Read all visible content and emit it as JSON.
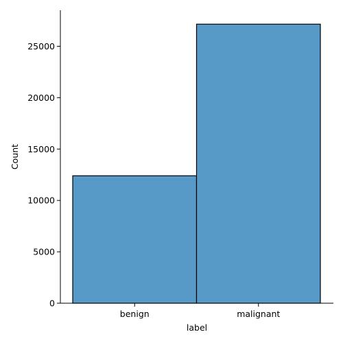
{
  "chart_data": {
    "type": "bar",
    "title": "",
    "xlabel": "label",
    "ylabel": "Count",
    "categories": [
      "benign",
      "malignant"
    ],
    "values": [
      12400,
      27150
    ],
    "ylim": [
      0,
      28500
    ],
    "yticks": [
      0,
      5000,
      10000,
      15000,
      20000,
      25000
    ],
    "ytick_labels": [
      "0",
      "5000",
      "10000",
      "15000",
      "20000",
      "25000"
    ],
    "grid": false,
    "legend": "none",
    "colors": {
      "bar_fill": "#5799c7",
      "bar_edge": "#000000",
      "axis": "#000000"
    }
  }
}
